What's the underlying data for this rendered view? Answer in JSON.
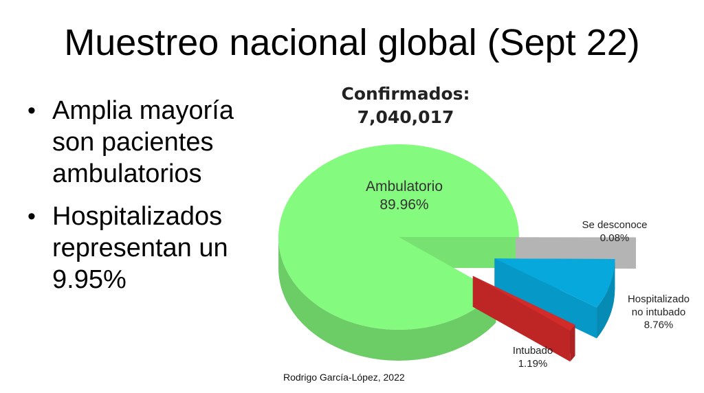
{
  "slide": {
    "title": "Muestreo nacional global (Sept 22)",
    "bullets": [
      "Amplia mayoría son pacientes ambulatorios",
      "Hospitalizados representan un 9.95%"
    ],
    "credit": "Rodrigo García-López, 2022"
  },
  "chart_data": {
    "type": "pie",
    "title": "Confirmados:",
    "subtitle": "7,040,017",
    "slices": [
      {
        "label": "Ambulatorio",
        "value": 89.96,
        "value_label": "89.96%",
        "color": "#84fa7e"
      },
      {
        "label": "Intubado",
        "value": 1.19,
        "value_label": "1.19%",
        "color": "#d32a2a"
      },
      {
        "label": "Hospitalizado no intubado",
        "value": 8.76,
        "value_label": "8.76%",
        "color": "#07a9dd"
      },
      {
        "label": "Se desconoce",
        "value": 0.08,
        "value_label": "0.08%",
        "color": "#c8c8c8"
      }
    ],
    "style": "3d-exploded",
    "legend": "none"
  }
}
